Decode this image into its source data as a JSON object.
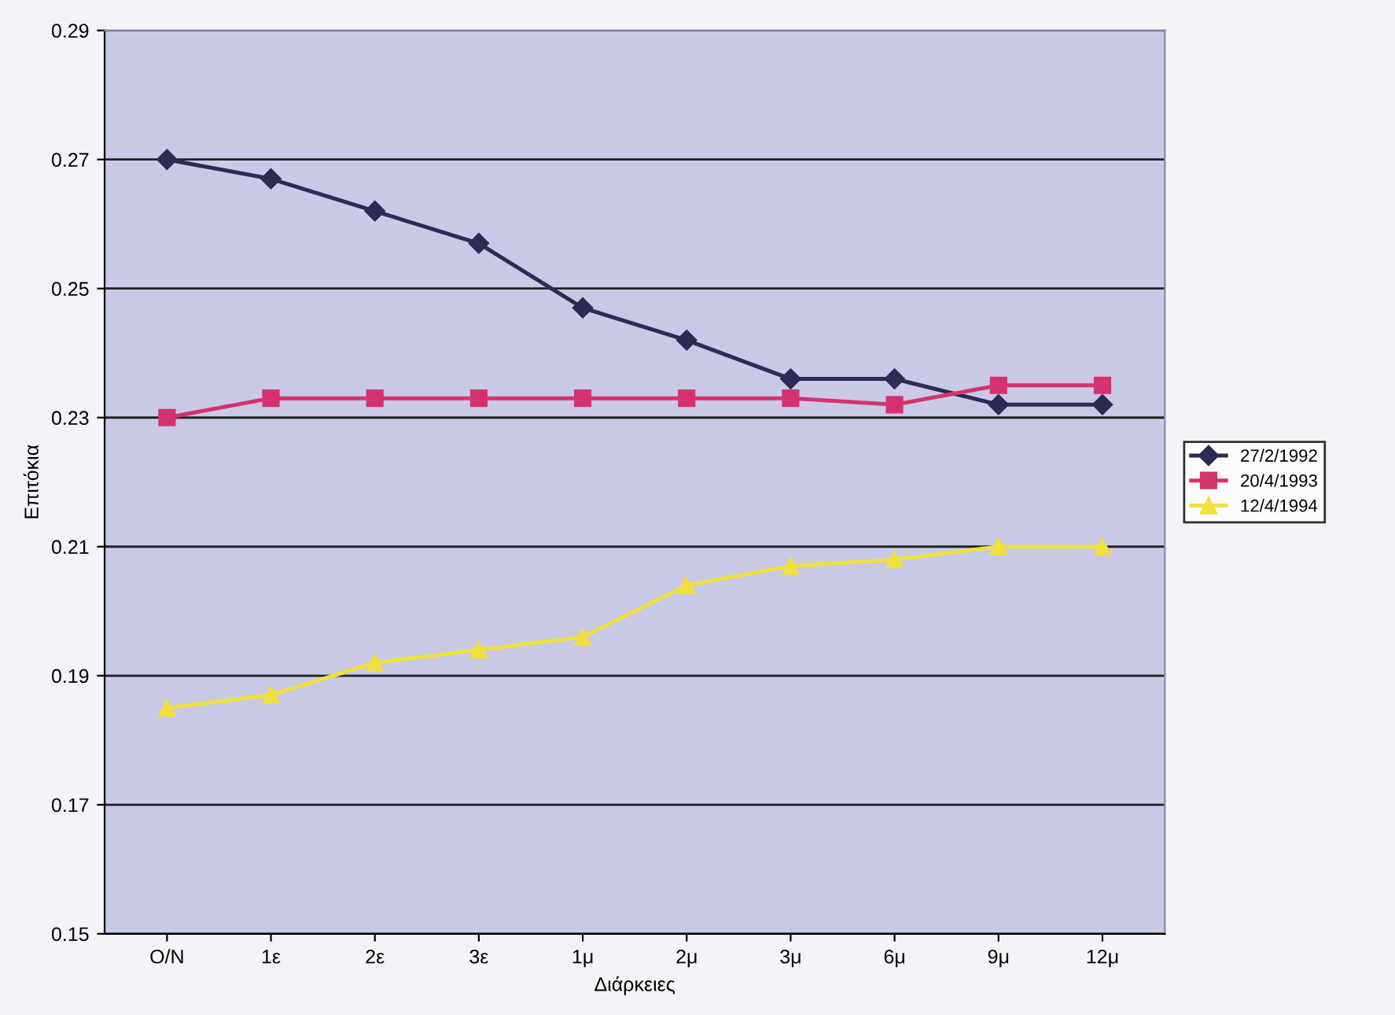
{
  "chart_data": {
    "type": "line",
    "xlabel": "Διάρκειες",
    "ylabel": "Επιτόκια",
    "categories": [
      "O/N",
      "1ε",
      "2ε",
      "3ε",
      "1μ",
      "2μ",
      "3μ",
      "6μ",
      "9μ",
      "12μ"
    ],
    "series": [
      {
        "name": "27/2/1992",
        "color": "#2b2b55",
        "marker": "diamond",
        "values": [
          0.27,
          0.267,
          0.262,
          0.257,
          0.247,
          0.242,
          0.236,
          0.236,
          0.232,
          0.232
        ]
      },
      {
        "name": "20/4/1993",
        "color": "#d6336e",
        "marker": "square",
        "values": [
          0.23,
          0.233,
          0.233,
          0.233,
          0.233,
          0.233,
          0.233,
          0.232,
          0.235,
          0.235
        ]
      },
      {
        "name": "12/4/1994",
        "color": "#f2e040",
        "marker": "triangle",
        "values": [
          0.185,
          0.187,
          0.192,
          0.194,
          0.196,
          0.204,
          0.207,
          0.208,
          0.21,
          0.21
        ]
      }
    ],
    "ylim": [
      0.15,
      0.29
    ],
    "yticks": [
      0.15,
      0.17,
      0.19,
      0.21,
      0.23,
      0.25,
      0.27,
      0.29
    ],
    "grid": "y",
    "legend": "right",
    "line_style": "solid"
  }
}
